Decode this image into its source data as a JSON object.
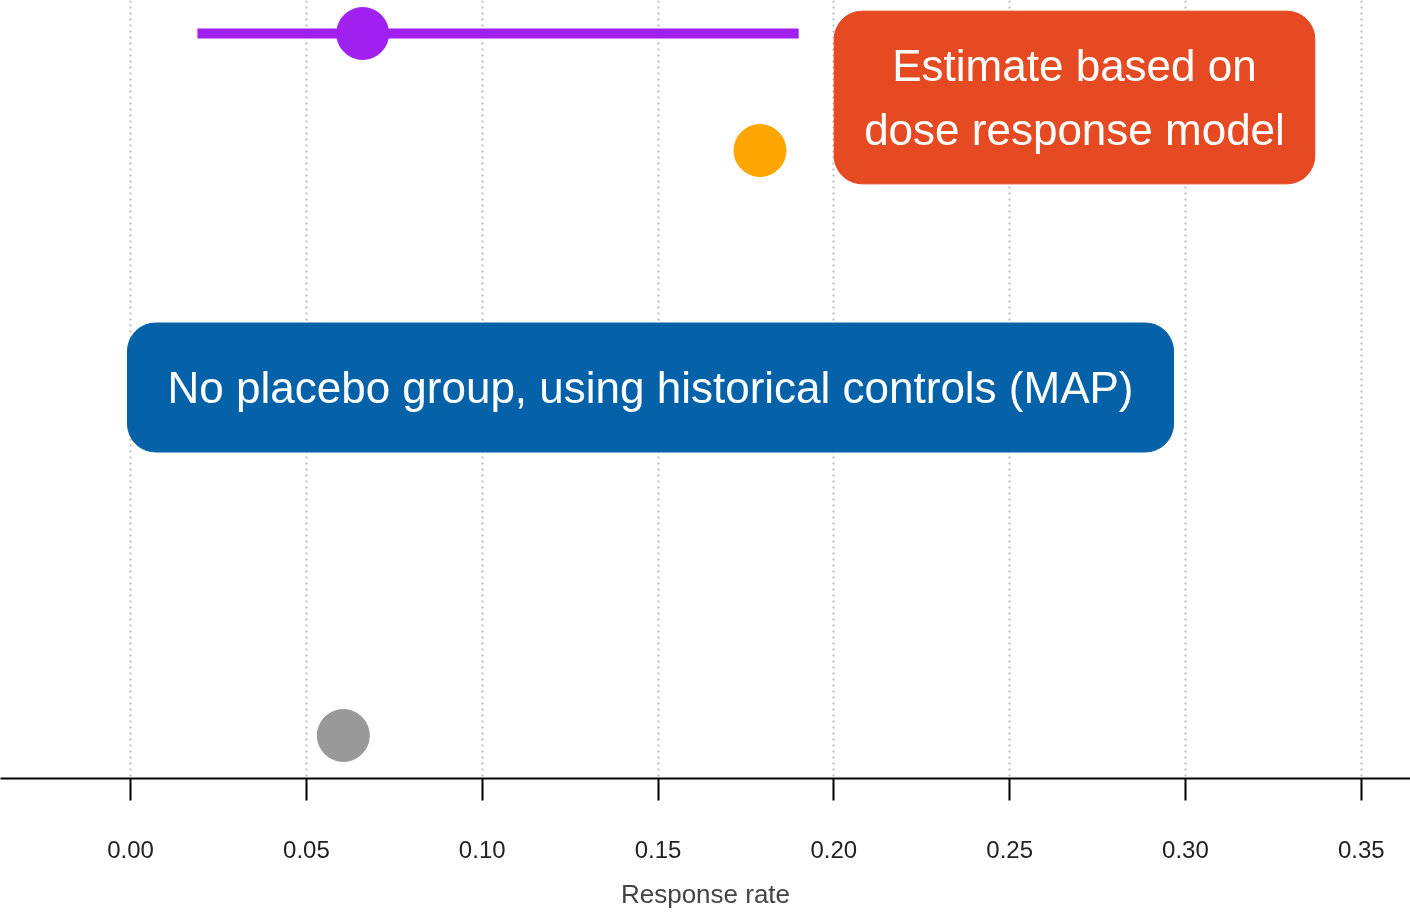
{
  "chart_data": {
    "type": "scatter",
    "orientation": "horizontal",
    "xlabel": "Response rate",
    "categories": [
      null,
      null,
      null,
      null,
      null,
      null,
      null
    ],
    "xlim": [
      -0.037,
      0.364
    ],
    "xticks": [
      {
        "value": 0,
        "label": "0.00"
      },
      {
        "value": 0.05,
        "label": "0.05"
      },
      {
        "value": 0.1,
        "label": "0.10"
      },
      {
        "value": 0.15,
        "label": "0.15"
      },
      {
        "value": 0.2,
        "label": "0.20"
      },
      {
        "value": 0.25,
        "label": "0.25"
      },
      {
        "value": 0.3,
        "label": "0.30"
      },
      {
        "value": 0.35,
        "label": "0.35"
      }
    ],
    "grid": "x",
    "tick_labels": "x",
    "marker": "circle",
    "series": [
      {
        "color": "#a020f0",
        "values": [
          0.066,
          null,
          null,
          null,
          null,
          null,
          null
        ],
        "errors": [
          [
            0.019,
            0.19
          ],
          null,
          null,
          null,
          null,
          null,
          null
        ]
      },
      {
        "color": "#ffa500",
        "values": [
          null,
          0.179,
          null,
          null,
          null,
          null,
          null
        ]
      },
      {
        "color": "#999999",
        "values": [
          null,
          null,
          null,
          null,
          null,
          null,
          0.0605
        ]
      }
    ],
    "annotations": [
      "Estimate based on\ndose response model",
      "No placebo group, using historical controls (MAP)"
    ]
  }
}
